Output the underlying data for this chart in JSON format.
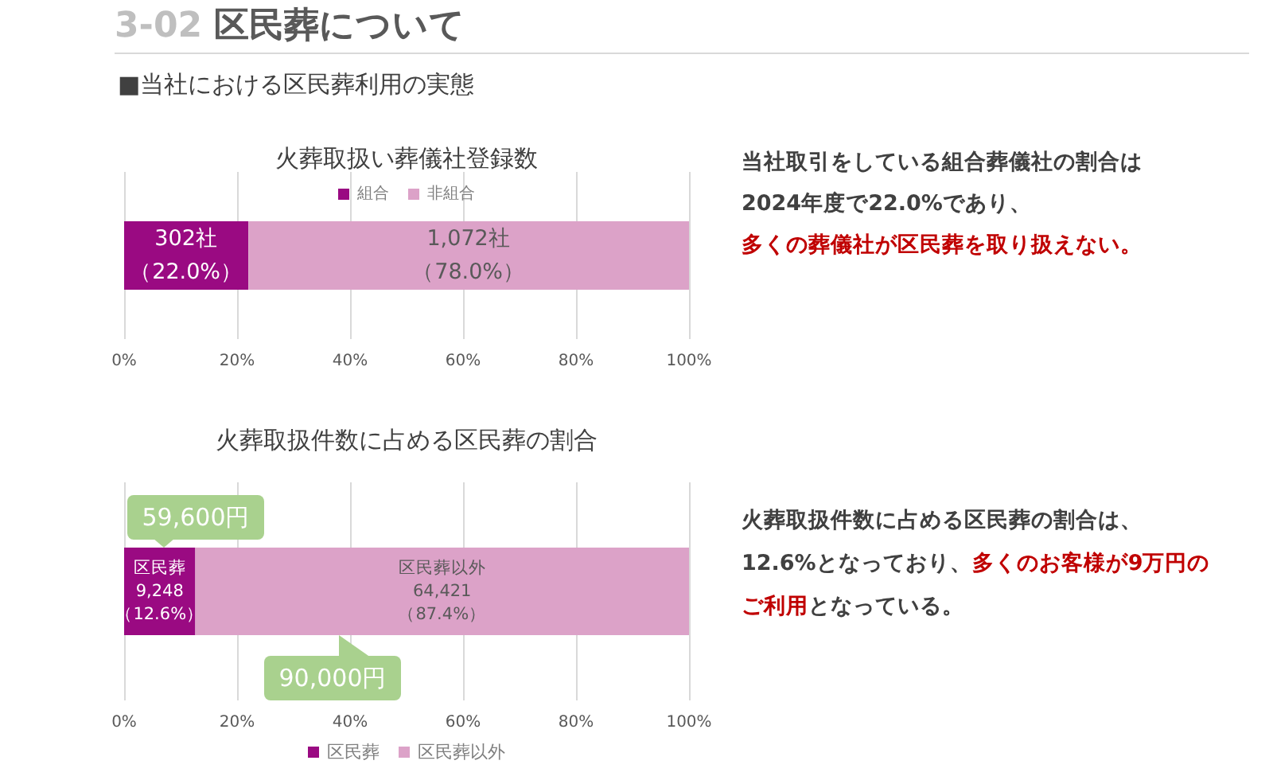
{
  "chart_data": [
    {
      "type": "other",
      "title": "3-02 区民葬について",
      "subtitle": "■当社における区民葬利用の実態"
    },
    {
      "type": "bar",
      "orientation": "horizontal",
      "stacked": true,
      "title": "火葬取扱い葬儀社登録数",
      "categories": [
        null
      ],
      "series": [
        {
          "name": "組合",
          "color": "#9a0a82",
          "values": [
            22.0
          ],
          "value_labels": [
            "302社（22.0%）"
          ]
        },
        {
          "name": "非組合",
          "color": "#dca2c8",
          "values": [
            78.0
          ],
          "value_labels": [
            "1,072社（78.0%）"
          ]
        }
      ],
      "xlim": [
        0,
        100
      ],
      "xticks": [
        {
          "value": 0,
          "label": "0%"
        },
        {
          "value": 20,
          "label": "20%"
        },
        {
          "value": 40,
          "label": "40%"
        },
        {
          "value": 60,
          "label": "60%"
        },
        {
          "value": 80,
          "label": "80%"
        },
        {
          "value": 100,
          "label": "100%"
        }
      ],
      "grid": "x",
      "legend": "top",
      "annotations": [
        "当社取引をしている組合葬儀社の割合は",
        "2024年度で22.0%であり、",
        "多くの葬儀社が区民葬を取り扱えない。"
      ]
    },
    {
      "type": "bar",
      "orientation": "horizontal",
      "stacked": true,
      "title": "火葬取扱件数に占める区民葬の割合",
      "categories": [
        null
      ],
      "series": [
        {
          "name": "区民葬",
          "color": "#9a0a82",
          "values": [
            12.6
          ],
          "value_labels": [
            "区民葬9,248（12.6%）"
          ]
        },
        {
          "name": "区民葬以外",
          "color": "#dca2c8",
          "values": [
            87.4
          ],
          "value_labels": [
            "区民葬以外64,421（87.4%）"
          ]
        }
      ],
      "xlim": [
        0,
        100
      ],
      "xticks": [
        {
          "value": 0,
          "label": "0%"
        },
        {
          "value": 20,
          "label": "20%"
        },
        {
          "value": 40,
          "label": "40%"
        },
        {
          "value": 60,
          "label": "60%"
        },
        {
          "value": 80,
          "label": "80%"
        },
        {
          "value": 100,
          "label": "100%"
        }
      ],
      "grid": "x",
      "legend": "bottom",
      "annotations": [
        "59,600円",
        "90,000円",
        "火葬取扱件数に占める区民葬の割合は、",
        "12.6%となっており、",
        "多くのお客様が9万円の",
        "ご利用",
        "となっている。"
      ]
    }
  ]
}
